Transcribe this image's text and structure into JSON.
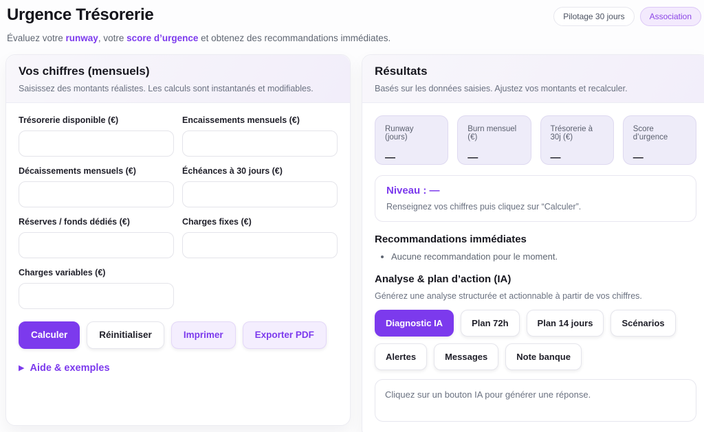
{
  "header": {
    "title": "Urgence Trésorerie",
    "subtitle_prefix": "Évaluez votre ",
    "subtitle_runway": "runway",
    "subtitle_mid": ", votre ",
    "subtitle_score": "score d’urgence",
    "subtitle_suffix": " et obtenez des recommandations immédiates.",
    "pills": [
      {
        "label": "Pilotage 30 jours"
      },
      {
        "label": "Association"
      }
    ]
  },
  "inputs_card": {
    "title": "Vos chiffres (mensuels)",
    "subtitle": "Saisissez des montants réalistes. Les calculs sont instantanés et modifiables.",
    "fields": [
      {
        "label": "Trésorerie disponible (€)",
        "value": ""
      },
      {
        "label": "Encaissements mensuels (€)",
        "value": ""
      },
      {
        "label": "Décaissements mensuels (€)",
        "value": ""
      },
      {
        "label": "Échéances à 30 jours (€)",
        "value": ""
      },
      {
        "label": "Réserves / fonds dédiés (€)",
        "value": ""
      },
      {
        "label": "Charges fixes (€)",
        "value": ""
      },
      {
        "label": "Charges variables (€)",
        "value": ""
      }
    ],
    "buttons": {
      "calculate": "Calculer",
      "reset": "Réinitialiser",
      "print": "Imprimer",
      "export_pdf": "Exporter PDF"
    },
    "help_toggle": {
      "marker": "▶",
      "label": "Aide & exemples"
    }
  },
  "results_card": {
    "title": "Résultats",
    "subtitle": "Basés sur les données saisies. Ajustez vos montants et recalculer.",
    "stats": [
      {
        "label": "Runway (jours)",
        "value": "—"
      },
      {
        "label": "Burn mensuel (€)",
        "value": "—"
      },
      {
        "label": "Trésorerie à 30j (€)",
        "value": "—"
      },
      {
        "label": "Score d’urgence",
        "value": "—"
      }
    ],
    "level": {
      "title": "Niveau : —",
      "hint": "Renseignez vos chiffres puis cliquez sur “Calculer”."
    },
    "recommendations": {
      "title": "Recommandations immédiates",
      "items": [
        "Aucune recommandation pour le moment."
      ]
    },
    "ai": {
      "title": "Analyse & plan d’action (IA)",
      "subtitle": "Générez une analyse structurée et actionnable à partir de vos chiffres.",
      "buttons": [
        {
          "label": "Diagnostic IA",
          "active": true
        },
        {
          "label": "Plan 72h",
          "active": false
        },
        {
          "label": "Plan 14 jours",
          "active": false
        },
        {
          "label": "Scénarios",
          "active": false
        },
        {
          "label": "Alertes",
          "active": false
        },
        {
          "label": "Messages",
          "active": false
        },
        {
          "label": "Note banque",
          "active": false
        }
      ],
      "output_placeholder": "Cliquez sur un bouton IA pour générer une réponse."
    }
  },
  "colors": {
    "accent": "#7c3aed",
    "accent_soft_bg": "#f4eefe",
    "stat_box_bg": "#eeecf9"
  }
}
